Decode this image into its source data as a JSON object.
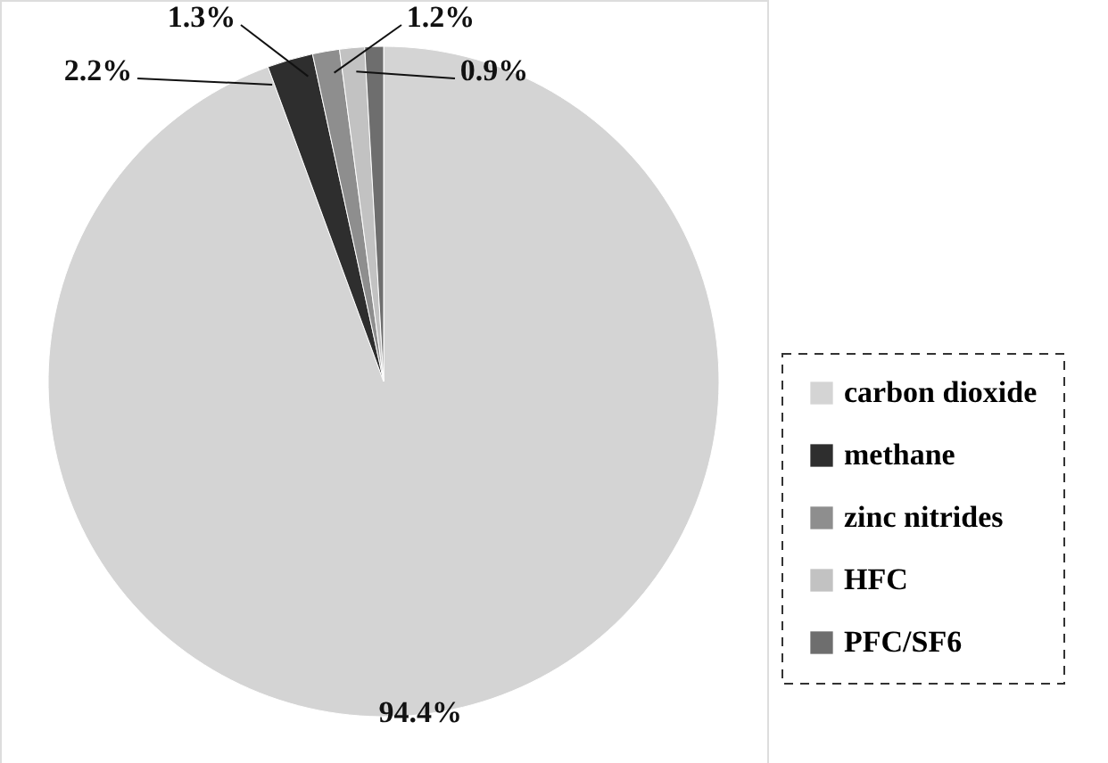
{
  "chart_data": {
    "type": "pie",
    "categories": [
      "carbon dioxide",
      "methane",
      "zinc nitrides",
      "HFC",
      "PFC/SF6"
    ],
    "values": [
      94.4,
      2.2,
      1.3,
      1.2,
      0.9
    ],
    "colors": [
      "#d4d4d4",
      "#2e2e2e",
      "#8e8e8e",
      "#c2c2c2",
      "#6e6e6e"
    ],
    "value_labels": [
      "94.4%",
      "2.2%",
      "1.3%",
      "1.2%",
      "0.9%"
    ],
    "legend": "right"
  }
}
